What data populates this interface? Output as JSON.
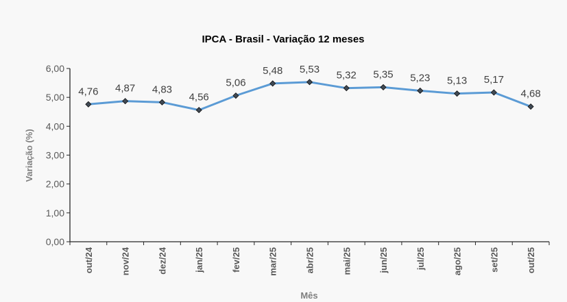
{
  "chart_data": {
    "type": "line",
    "title": "IPCA - Brasil - Variação 12 meses",
    "xlabel": "Mês",
    "ylabel": "Variação (%)",
    "ylim": [
      0,
      6
    ],
    "yticks": [
      "0,00",
      "1,00",
      "2,00",
      "3,00",
      "4,00",
      "5,00",
      "6,00"
    ],
    "categories": [
      "out/24",
      "nov/24",
      "dez/24",
      "jan/25",
      "fev/25",
      "mar/25",
      "abr/25",
      "mai/25",
      "jun/25",
      "jul/25",
      "ago/25",
      "set/25",
      "out/25"
    ],
    "values": [
      4.76,
      4.87,
      4.83,
      4.56,
      5.06,
      5.48,
      5.53,
      5.32,
      5.35,
      5.23,
      5.13,
      5.17,
      4.68
    ],
    "labels": [
      "4,76",
      "4,87",
      "4,83",
      "4,56",
      "5,06",
      "5,48",
      "5,53",
      "5,32",
      "5,35",
      "5,23",
      "5,13",
      "5,17",
      "4,68"
    ],
    "grid": false,
    "line_color": "#5b9bd5",
    "marker_color": "#404a55"
  }
}
